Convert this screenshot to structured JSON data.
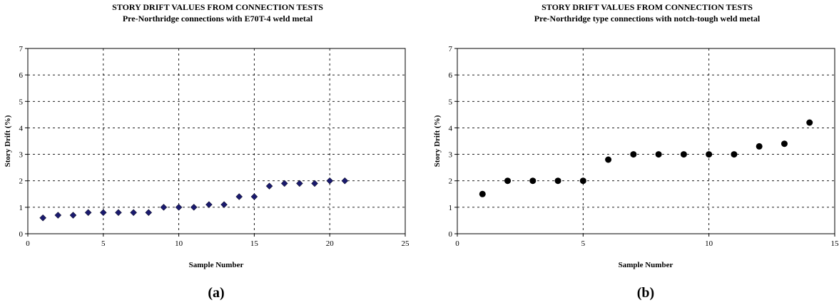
{
  "chart_data": [
    {
      "type": "scatter",
      "title": "STORY DRIFT VALUES FROM CONNECTION TESTS",
      "subtitle": "Pre-Northridge connections with E70T-4 weld metal",
      "xlabel": "Sample Number",
      "ylabel": "Story Drift (%)",
      "xlim": [
        0,
        25
      ],
      "ylim": [
        0,
        7
      ],
      "xticks": [
        "0",
        "5",
        "10",
        "15",
        "20",
        "25"
      ],
      "yticks": [
        "0",
        "1",
        "2",
        "3",
        "4",
        "5",
        "6",
        "7"
      ],
      "grid": true,
      "marker": "diamond",
      "color": "#1a1a6e",
      "x": [
        1,
        2,
        3,
        4,
        5,
        6,
        7,
        8,
        9,
        10,
        11,
        12,
        13,
        14,
        15,
        16,
        17,
        18,
        19,
        20,
        21
      ],
      "y": [
        0.6,
        0.7,
        0.7,
        0.8,
        0.8,
        0.8,
        0.8,
        0.8,
        1.0,
        1.0,
        1.0,
        1.1,
        1.1,
        1.4,
        1.4,
        1.8,
        1.9,
        1.9,
        1.9,
        2.0,
        2.0
      ],
      "caption": "(a)"
    },
    {
      "type": "scatter",
      "title": "STORY DRIFT VALUES FROM CONNECTION TESTS",
      "subtitle": "Pre-Northridge type connections with notch-tough weld metal",
      "xlabel": "Sample Number",
      "ylabel": "Story Drift (%)",
      "xlim": [
        0,
        15
      ],
      "ylim": [
        0,
        7
      ],
      "xticks": [
        "0",
        "5",
        "10",
        "15"
      ],
      "yticks": [
        "0",
        "1",
        "2",
        "3",
        "4",
        "5",
        "6",
        "7"
      ],
      "grid": true,
      "marker": "circle",
      "color": "#000000",
      "x": [
        1,
        2,
        3,
        4,
        5,
        6,
        7,
        8,
        9,
        10,
        11,
        12,
        13,
        14
      ],
      "y": [
        1.5,
        2.0,
        2.0,
        2.0,
        2.0,
        2.8,
        3.0,
        3.0,
        3.0,
        3.0,
        3.0,
        3.3,
        3.4,
        4.2
      ],
      "caption": "(b)"
    }
  ]
}
